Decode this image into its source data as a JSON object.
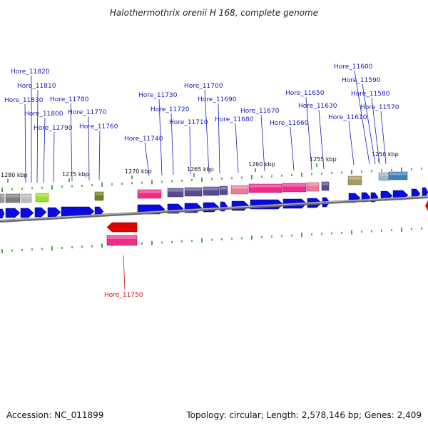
{
  "title": "Halothermothrix orenii H 168, complete genome",
  "footer": {
    "accession": "Accession: NC_011899",
    "summary": "Topology: circular; Length: 2,578,146 bp; Genes: 2,409"
  },
  "colors": {
    "forward_arrow": "#0a0ae0",
    "reverse_arrow": "#e00000",
    "label_forward": "#1a1ab8",
    "label_reverse": "#cc1111",
    "backbone": "#808080",
    "tick": "#1f8a1f"
  },
  "kbp_labels": [
    "1280 kbp",
    "1275 kbp",
    "1270 kbp",
    "1265 kbp",
    "1260 kbp",
    "1255 kbp",
    "1250 kbp"
  ],
  "gene_labels": [
    "Hore_11820",
    "Hore_11810",
    "Hore_11830",
    "Hore_11800",
    "Hore_11780",
    "Hore_11790",
    "Hore_11770",
    "Hore_11760",
    "Hore_11730",
    "Hore_11740",
    "Hore_11720",
    "Hore_11700",
    "Hore_11710",
    "Hore_11690",
    "Hore_11680",
    "Hore_11670",
    "Hore_11650",
    "Hore_11660",
    "Hore_11630",
    "Hore_11600",
    "Hore_11590",
    "Hore_11580",
    "Hore_11610",
    "Hore_11570",
    "Hore_11750"
  ],
  "gene_strands": [
    "+",
    "+",
    "+",
    "+",
    "+",
    "+",
    "+",
    "+",
    "+",
    "+",
    "+",
    "+",
    "+",
    "+",
    "+",
    "+",
    "+",
    "+",
    "+",
    "+",
    "+",
    "+",
    "+",
    "+",
    "-"
  ]
}
